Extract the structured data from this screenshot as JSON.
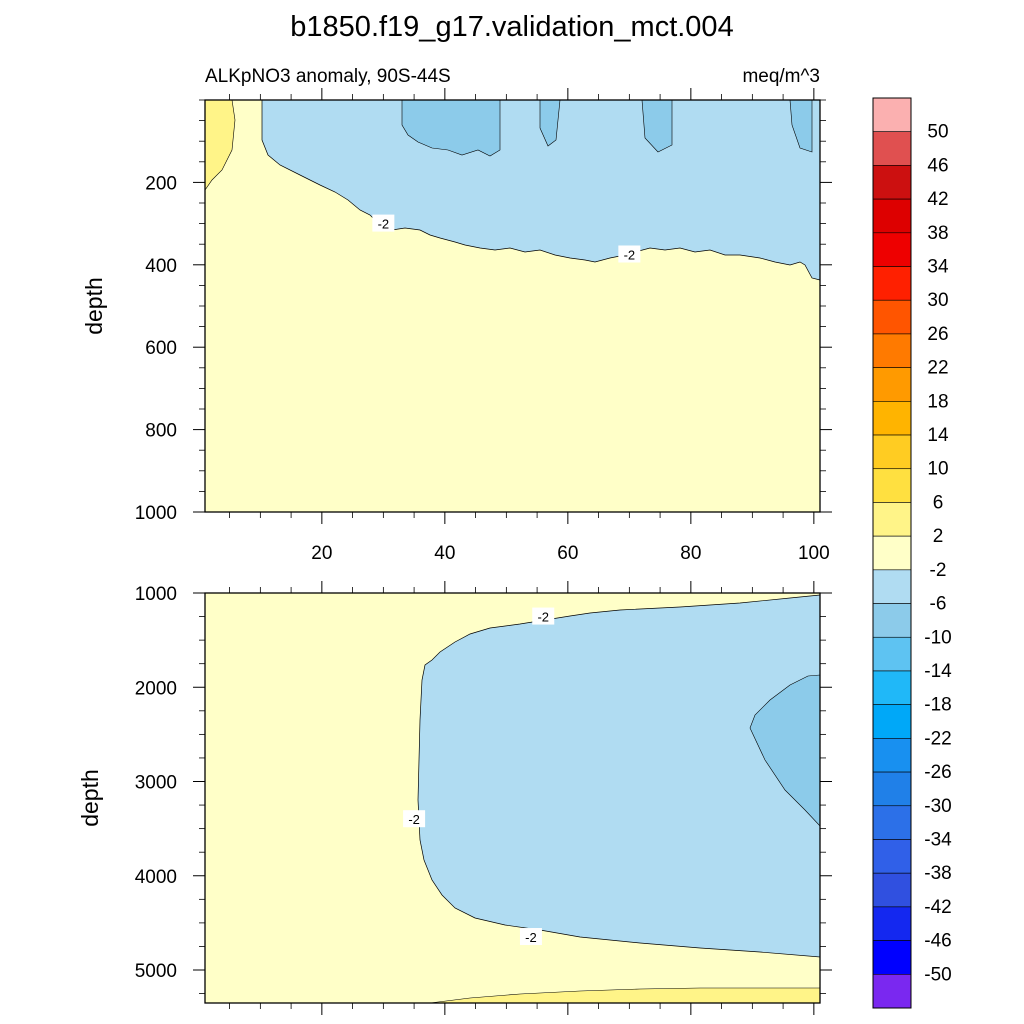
{
  "figure": {
    "title": "b1850.f19_g17.validation_mct.004",
    "left_string": "ALKpNO3 anomaly, 90S-44S",
    "right_string": "meq/m^3"
  },
  "chart_data": {
    "type": "heatmap",
    "panels": [
      {
        "name": "upper",
        "ylabel": "depth",
        "ylim": [
          1000,
          0
        ],
        "xlim": [
          1,
          101
        ],
        "x_ticks": [
          20,
          40,
          60,
          80,
          100
        ],
        "y_ticks": [
          200,
          400,
          600,
          800,
          1000
        ],
        "contour_labels": [
          {
            "text": "-2",
            "x": 30,
            "y": 300
          },
          {
            "text": "-2",
            "x": 70,
            "y": 375
          }
        ]
      },
      {
        "name": "lower",
        "ylabel": "depth",
        "ylim": [
          5350,
          1000
        ],
        "xlim": [
          1,
          101
        ],
        "x_ticks": [
          20,
          40,
          60,
          80,
          100
        ],
        "y_ticks": [
          1000,
          2000,
          3000,
          4000,
          5000
        ],
        "contour_labels": [
          {
            "text": "-2",
            "x": 56,
            "y": 1250
          },
          {
            "text": "-2",
            "x": 35,
            "y": 3400
          },
          {
            "text": "-2",
            "x": 54,
            "y": 4650
          }
        ]
      }
    ],
    "colorbar": {
      "labels": [
        "50",
        "46",
        "42",
        "38",
        "34",
        "30",
        "26",
        "22",
        "18",
        "14",
        "10",
        "6",
        "2",
        "-2",
        "-6",
        "-10",
        "-14",
        "-18",
        "-22",
        "-26",
        "-30",
        "-34",
        "-38",
        "-42",
        "-46",
        "-50"
      ],
      "colors": [
        "#fbb0b0",
        "#e05050",
        "#cc1010",
        "#dd0000",
        "#ee0000",
        "#ff2000",
        "#ff5500",
        "#ff7a00",
        "#ff9a00",
        "#ffb400",
        "#ffcc22",
        "#ffe040",
        "#fff488",
        "#ffffc8",
        "#b0dcf2",
        "#8ccbea",
        "#5ec3f2",
        "#20b8f8",
        "#00a8f8",
        "#1890f0",
        "#2080e8",
        "#2c70e8",
        "#3060e8",
        "#3050e0",
        "#1428f0",
        "#0000ff",
        "#7a28f0"
      ]
    }
  }
}
